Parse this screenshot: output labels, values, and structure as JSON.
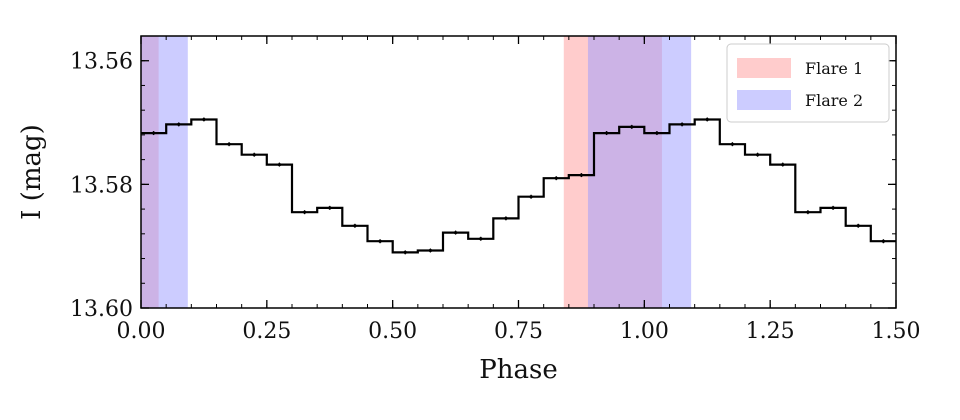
{
  "chart_data": {
    "type": "line",
    "step": "post",
    "xlabel": "Phase",
    "ylabel": "I (mag)",
    "xlim": [
      0.0,
      1.5
    ],
    "ylim": [
      13.6,
      13.556
    ],
    "y_inverted": true,
    "grid": false,
    "legend_position": "top-right",
    "x_ticks": [
      "0.00",
      "0.25",
      "0.50",
      "0.75",
      "1.00",
      "1.25",
      "1.50"
    ],
    "y_ticks": [
      "13.56",
      "13.58",
      "13.60"
    ],
    "series": [
      {
        "x": [
          0.0,
          0.05,
          0.1,
          0.15,
          0.2,
          0.25,
          0.3,
          0.35,
          0.4,
          0.45,
          0.5,
          0.55,
          0.6,
          0.65,
          0.7,
          0.75,
          0.8,
          0.85,
          0.9,
          0.95,
          1.0,
          1.05,
          1.1,
          1.15,
          1.2,
          1.25,
          1.3,
          1.35,
          1.4,
          1.45
        ],
        "y": [
          13.5717,
          13.5703,
          13.5695,
          13.5735,
          13.5752,
          13.5768,
          13.5845,
          13.5838,
          13.5867,
          13.5892,
          13.591,
          13.5907,
          13.5878,
          13.5888,
          13.5855,
          13.582,
          13.579,
          13.5785,
          13.5717,
          13.5707,
          13.5717,
          13.5703,
          13.5695,
          13.5735,
          13.5752,
          13.5768,
          13.5845,
          13.5838,
          13.5867,
          13.5892
        ],
        "color": "#000000"
      }
    ],
    "shaded_regions": [
      {
        "name": "Flare 1",
        "color": "#ff9999",
        "x_ranges": [
          [
            -0.2,
            0.035
          ],
          [
            0.84,
            1.035
          ]
        ]
      },
      {
        "name": "Flare 2",
        "color": "#9999ff",
        "x_ranges": [
          [
            -0.2,
            0.093
          ],
          [
            0.888,
            1.093
          ]
        ]
      }
    ],
    "legend": [
      "Flare 1",
      "Flare 2"
    ]
  }
}
